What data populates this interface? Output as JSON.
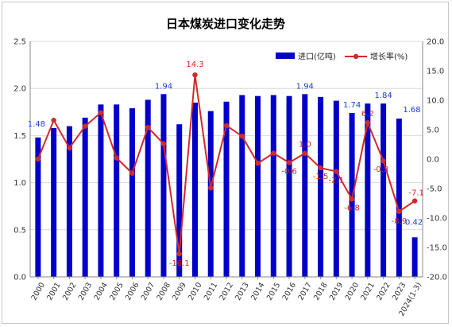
{
  "chart_data": {
    "type": "bar",
    "title": "日本煤炭进口变化走势",
    "categories": [
      "2000",
      "2001",
      "2002",
      "2003",
      "2004",
      "2005",
      "2006",
      "2007",
      "2008",
      "2009",
      "2010",
      "2011",
      "2012",
      "2013",
      "2014",
      "2015",
      "2016",
      "2017",
      "2018",
      "2019",
      "2020",
      "2021",
      "2022",
      "2023",
      "2024(1-3)"
    ],
    "ylim": [
      0,
      2.5
    ],
    "y_ticks": [
      "0.0",
      "0.5",
      "1.0",
      "1.5",
      "2.0",
      "2.5"
    ],
    "y2lim": [
      -20,
      20
    ],
    "y2_ticks": [
      "-20.0",
      "-15.0",
      "-10.0",
      "-5.0",
      "0.0",
      "5.0",
      "10.0",
      "15.0",
      "20.0"
    ],
    "grid": true,
    "legend_position": "top-right",
    "series": [
      {
        "name": "进口(亿吨)",
        "kind": "bar",
        "axis": "left",
        "color": "#0000c8",
        "values": [
          1.48,
          1.58,
          1.6,
          1.69,
          1.83,
          1.83,
          1.79,
          1.88,
          1.94,
          1.62,
          1.85,
          1.76,
          1.86,
          1.93,
          1.92,
          1.93,
          1.92,
          1.94,
          1.91,
          1.87,
          1.74,
          1.84,
          1.84,
          1.68,
          0.42
        ]
      },
      {
        "name": "增长率(%)",
        "kind": "line",
        "axis": "right",
        "color": "#d22a2a",
        "values": [
          0.0,
          6.6,
          1.9,
          5.6,
          7.9,
          0.2,
          -2.4,
          5.4,
          2.6,
          -16.1,
          14.3,
          -4.9,
          5.7,
          3.9,
          -0.7,
          1.0,
          -0.6,
          1.0,
          -1.5,
          -2.1,
          -6.8,
          6.2,
          -0.3,
          -8.9,
          -7.1
        ]
      }
    ],
    "bar_labels": [
      {
        "index": 0,
        "text": "1.48"
      },
      {
        "index": 8,
        "text": "1.94"
      },
      {
        "index": 17,
        "text": "1.94"
      },
      {
        "index": 20,
        "text": "1.74"
      },
      {
        "index": 22,
        "text": "1.84"
      },
      {
        "index": 23,
        "text": "1.68"
      },
      {
        "index": 24,
        "text": "0.42"
      }
    ],
    "line_labels": [
      {
        "index": 9,
        "text": "-16.1"
      },
      {
        "index": 10,
        "text": "14.3"
      },
      {
        "index": 16,
        "text": "-0.6"
      },
      {
        "index": 17,
        "text": "1.0"
      },
      {
        "index": 18,
        "text": "-1.5"
      },
      {
        "index": 19,
        "text": "-2.1"
      },
      {
        "index": 20,
        "text": "-6.8"
      },
      {
        "index": 21,
        "text": "6.2"
      },
      {
        "index": 22,
        "text": "-0.3"
      },
      {
        "index": 23,
        "text": "-8.9"
      },
      {
        "index": 24,
        "text": "-7.1"
      }
    ]
  }
}
